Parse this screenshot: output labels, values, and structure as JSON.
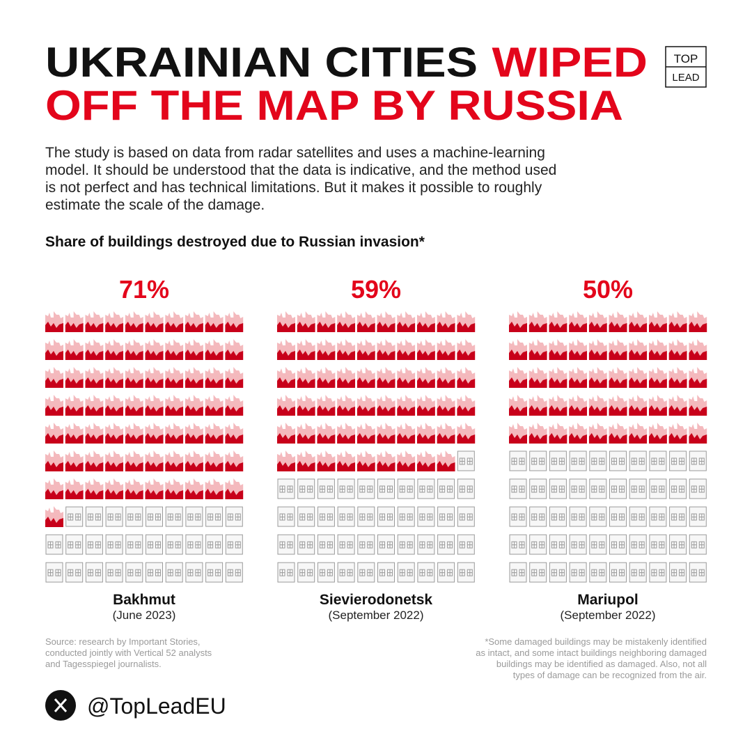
{
  "header": {
    "title_black": "UKRAINIAN CITIES",
    "title_red_1": "WIPED",
    "title_red_2": "OFF THE MAP BY RUSSIA",
    "logo_top": "TOP",
    "logo_bottom": "LEAD"
  },
  "description": [
    "The study is based on data from radar satellites and uses a machine-learning",
    "model. It should be understood that the data is indicative, and the method used",
    "is not perfect and has technical limitations. But it makes it possible to roughly",
    "estimate the scale of the damage."
  ],
  "chart_heading": "Share of buildings destroyed due to Russian invasion*",
  "chart_data": [
    {
      "type": "waffle",
      "title": "Bakhmut",
      "subtitle": "(June 2023)",
      "values": [
        71
      ],
      "value_labels": [
        "71%"
      ],
      "color": "#e3051b"
    },
    {
      "type": "waffle",
      "title": "Sievierodonetsk",
      "subtitle": "(September 2022)",
      "values": [
        59
      ],
      "value_labels": [
        "59%"
      ],
      "color": "#e3051b"
    },
    {
      "type": "waffle",
      "title": "Mariupol",
      "subtitle": "(September 2022)",
      "values": [
        50
      ],
      "value_labels": [
        "50%"
      ],
      "color": "#e3051b"
    }
  ],
  "source": [
    "Source: research by Important Stories,",
    "conducted jointly with Vertical 52 analysts",
    "and Tagesspiegel journalists."
  ],
  "footnote": [
    "*Some damaged buildings may be mistakenly identified",
    "as intact, and some intact buildings neighboring damaged",
    "buildings may be identified as damaged. Also, not all",
    "types of damage can be recognized from the air."
  ],
  "handle": "@TopLeadEU"
}
